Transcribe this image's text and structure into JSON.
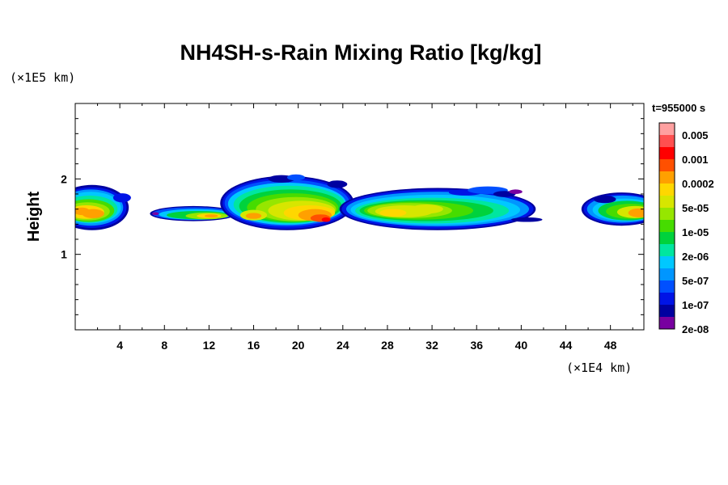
{
  "chart_data": {
    "type": "heatmap",
    "title": "NH4SH-s-Rain Mixing Ratio [kg/kg]",
    "xlabel": "",
    "ylabel": "Height",
    "x_unit": "(×1E4 km)",
    "y_unit": "(×1E5 km)",
    "time_label": "t=955000 s",
    "xlim": [
      0,
      51
    ],
    "ylim": [
      0,
      3
    ],
    "x_ticks": [
      4,
      8,
      12,
      16,
      20,
      24,
      28,
      32,
      36,
      40,
      44,
      48
    ],
    "y_ticks": [
      1,
      2
    ],
    "colorbar": {
      "labels": [
        "0.005",
        "0.001",
        "0.0002",
        "5e-05",
        "1e-05",
        "2e-06",
        "5e-07",
        "1e-07",
        "2e-08"
      ],
      "colors": [
        "#ffa0a0",
        "#ff5050",
        "#ff0000",
        "#ff5000",
        "#ffa000",
        "#ffd700",
        "#d7e600",
        "#96e600",
        "#46dc00",
        "#00d23c",
        "#00e6a0",
        "#00c8ff",
        "#0096ff",
        "#0050ff",
        "#0014e6",
        "#0000a0",
        "#7800a0"
      ]
    },
    "cloud_regions": [
      {
        "x_range": [
          0,
          4.5
        ],
        "y_range": [
          1.38,
          1.95
        ],
        "max_level": "0.0002"
      },
      {
        "x_range": [
          7,
          14.5
        ],
        "y_range": [
          1.45,
          1.63
        ],
        "max_level": "0.0002"
      },
      {
        "x_range": [
          13,
          25
        ],
        "y_range": [
          1.32,
          2.05
        ],
        "max_level": "0.001"
      },
      {
        "x_range": [
          25,
          42
        ],
        "y_range": [
          1.33,
          1.9
        ],
        "max_level": "5e-05"
      },
      {
        "x_range": [
          45,
          51
        ],
        "y_range": [
          1.38,
          1.8
        ],
        "max_level": "0.0002"
      }
    ]
  }
}
